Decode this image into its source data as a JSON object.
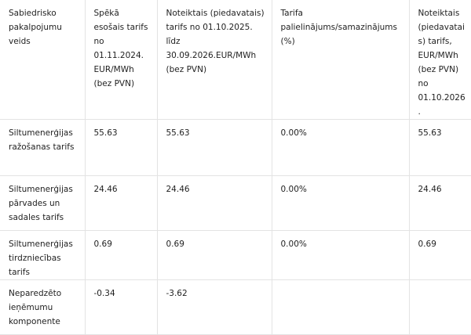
{
  "table": {
    "headers": [
      "Sabiedrisko pakalpojumu veids",
      "Spēkā esošais tarifs no 01.11.2024. EUR/MWh (bez PVN)",
      "Noteiktais (piedavatais) tarifs no 01.10.2025. līdz 30.09.2026.EUR/MWh (bez PVN)",
      "Tarifa palielinājums/samazinājums (%)",
      "Noteiktais (piedavatais) tarifs, EUR/MWh (bez PVN) no 01.10.2026."
    ],
    "rows": [
      [
        "Siltumenerģijas ražošanas tarifs",
        "55.63",
        "55.63",
        "0.00%",
        "55.63"
      ],
      [
        "Siltumenerģijas pārvades un sadales tarifs",
        "24.46",
        "24.46",
        "0.00%",
        "24.46"
      ],
      [
        "Siltumenerģijas tirdzniecības tarifs",
        "0.69",
        "0.69",
        "0.00%",
        "0.69"
      ],
      [
        "Neparedzēto ieņēmumu komponente",
        "-0.34",
        "-3.62",
        "",
        ""
      ]
    ]
  }
}
